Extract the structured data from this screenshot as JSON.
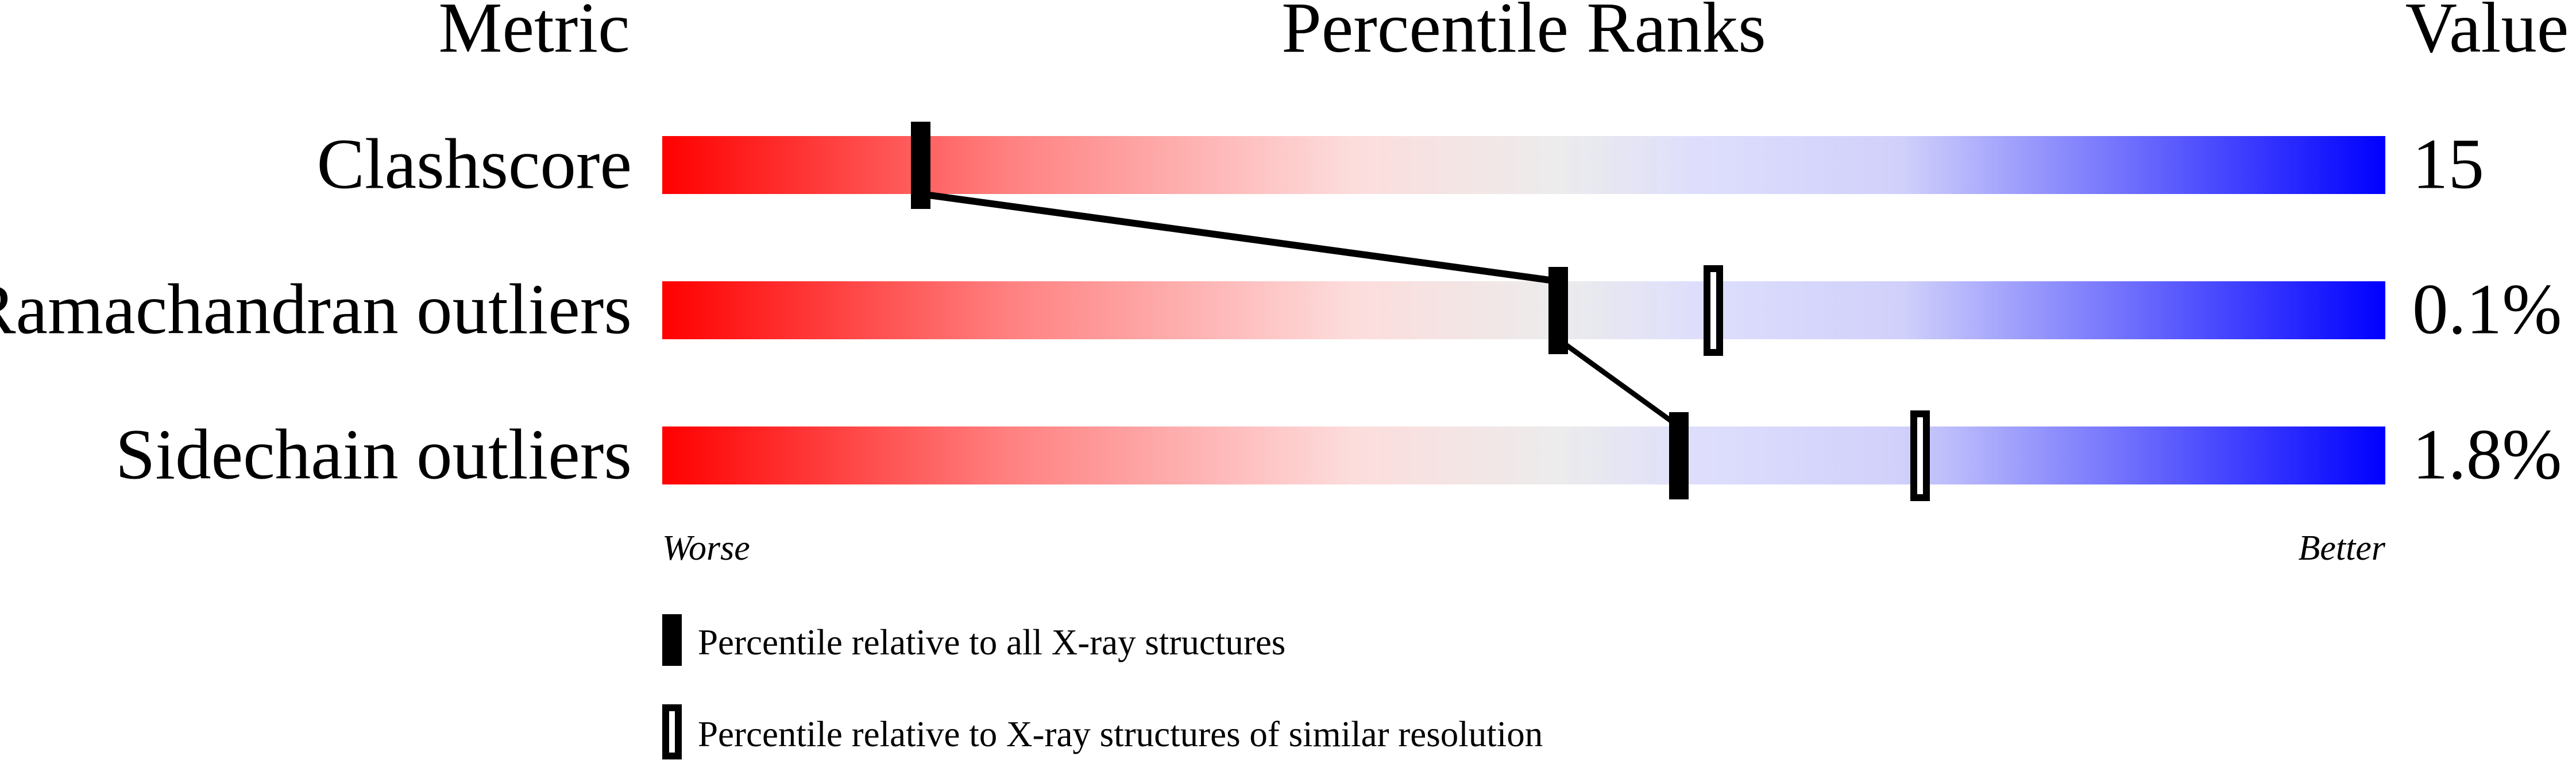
{
  "chart_data": {
    "type": "table",
    "headers": {
      "metric": "Metric",
      "ranks": "Percentile Ranks",
      "value": "Value"
    },
    "axis": {
      "left_label": "Worse",
      "right_label": "Better",
      "range": [
        0,
        100
      ]
    },
    "gradient_colors": [
      "#ff0000",
      "#ff8080",
      "#fddcdc",
      "#ececec",
      "#dedefc",
      "#d0d0fb",
      "#0000ff"
    ],
    "rows": [
      {
        "metric": "Clashscore",
        "value": "15",
        "percentile_all": 15,
        "percentile_similar": null
      },
      {
        "metric": "Ramachandran outliers",
        "value": "0.1%",
        "percentile_all": 52,
        "percentile_similar": 61
      },
      {
        "metric": "Sidechain outliers",
        "value": "1.8%",
        "percentile_all": 59,
        "percentile_similar": 73
      }
    ],
    "legend": {
      "filled": "Percentile relative to all X-ray structures",
      "open": "Percentile relative to X-ray structures of similar resolution"
    }
  }
}
